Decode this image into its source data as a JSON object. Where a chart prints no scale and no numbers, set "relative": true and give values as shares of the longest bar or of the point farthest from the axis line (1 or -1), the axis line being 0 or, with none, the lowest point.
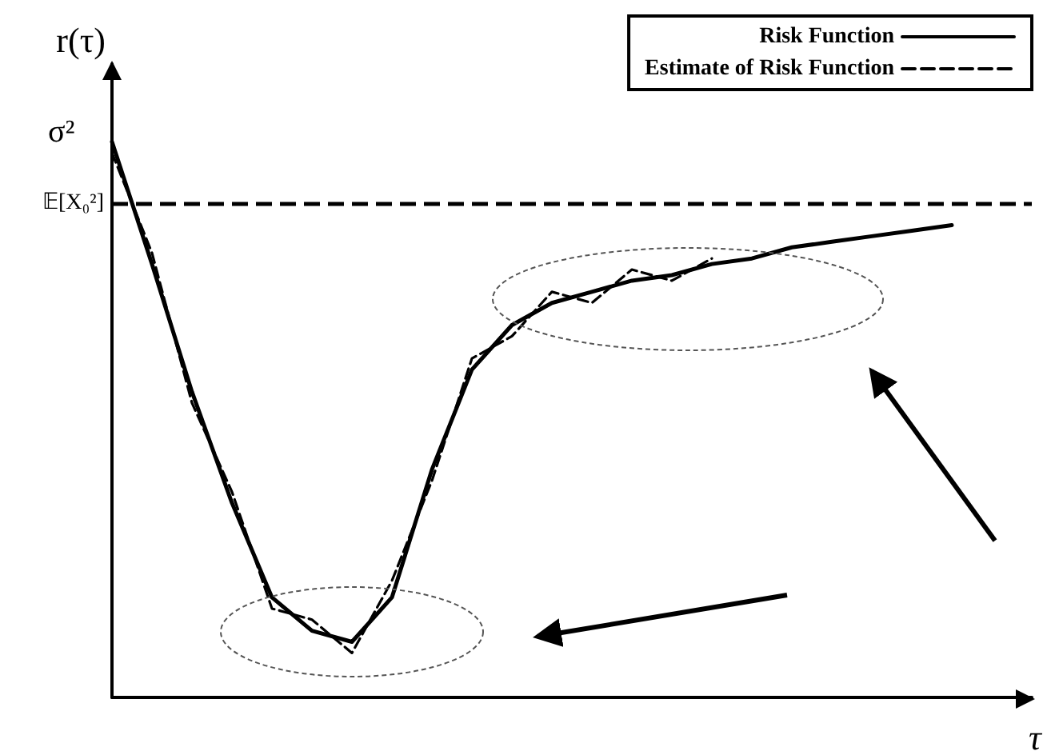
{
  "chart_data": {
    "type": "line",
    "relative": true,
    "xlabel": "τ",
    "ylabel": "r(τ)",
    "categories": [
      null,
      null,
      null,
      null,
      null,
      null,
      null,
      null,
      null,
      null,
      null,
      null,
      null,
      null,
      null,
      null,
      null,
      null,
      null,
      null,
      null,
      null,
      null,
      null
    ],
    "series": [
      {
        "name": "Risk Function",
        "color": "#000000",
        "line_style": "solid",
        "values": [
          1.0,
          0.78,
          0.55,
          0.35,
          0.18,
          0.12,
          0.1,
          0.18,
          0.41,
          0.59,
          0.67,
          0.71,
          0.73,
          0.75,
          0.76,
          0.78,
          0.79,
          0.81,
          0.82,
          0.83,
          0.84,
          0.85,
          null,
          null
        ]
      },
      {
        "name": "Estimate of Risk Function",
        "color": "#000000",
        "line_style": "dashed",
        "values": [
          0.98,
          0.8,
          0.53,
          0.37,
          0.16,
          0.14,
          0.08,
          0.21,
          0.39,
          0.61,
          0.65,
          0.73,
          0.71,
          0.77,
          0.75,
          0.79,
          null,
          null,
          null,
          null,
          null,
          null,
          null,
          null
        ]
      }
    ],
    "ref_lines": [
      {
        "axis": "y",
        "value": 0.89,
        "label": "𝔼[X₀²]",
        "color": "#000000",
        "line_style": "dashed"
      }
    ],
    "annotations": [
      "σ²"
    ],
    "legend": "top right",
    "grid": false,
    "marker": "none"
  }
}
